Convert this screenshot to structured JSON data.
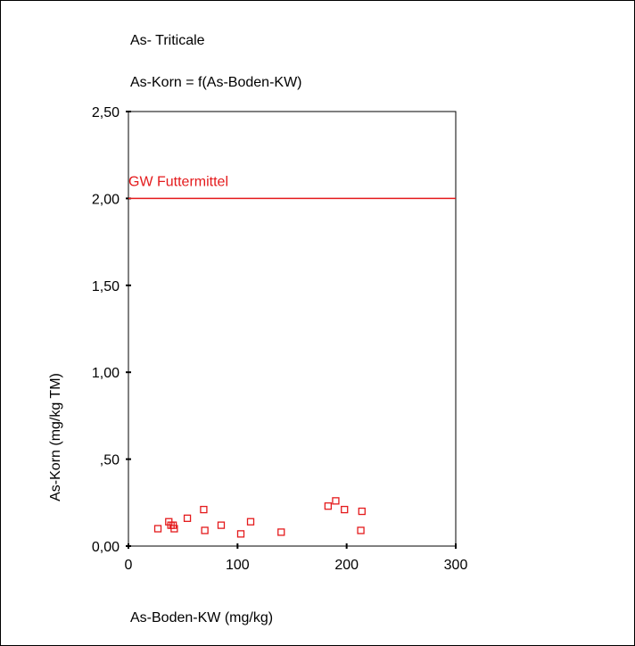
{
  "chart_data": {
    "type": "scatter",
    "title": "As- Triticale",
    "subtitle": "As-Korn = f(As-Boden-KW)",
    "xlabel": "As-Boden-KW (mg/kg)",
    "ylabel": "As-Korn (mg/kg TM)",
    "xlim": [
      0,
      300
    ],
    "ylim": [
      0,
      2.5
    ],
    "x_ticks": [
      0,
      100,
      200,
      300
    ],
    "x_tick_labels": [
      "0",
      "100",
      "200",
      "300"
    ],
    "y_ticks": [
      0,
      0.5,
      1.0,
      1.5,
      2.0,
      2.5
    ],
    "y_tick_labels": [
      "0,00",
      ",50",
      "1,00",
      "1,50",
      "2,00",
      "2,50"
    ],
    "grid": false,
    "reference_line": {
      "y": 2.0,
      "label": "GW Futtermittel",
      "color": "#e41a1c"
    },
    "marker": {
      "shape": "square",
      "filled": false,
      "color": "#e41a1c"
    },
    "points": [
      {
        "x": 27,
        "y": 0.1
      },
      {
        "x": 37,
        "y": 0.14
      },
      {
        "x": 39,
        "y": 0.12
      },
      {
        "x": 41,
        "y": 0.12
      },
      {
        "x": 42,
        "y": 0.1
      },
      {
        "x": 54,
        "y": 0.16
      },
      {
        "x": 69,
        "y": 0.21
      },
      {
        "x": 70,
        "y": 0.09
      },
      {
        "x": 85,
        "y": 0.12
      },
      {
        "x": 103,
        "y": 0.07
      },
      {
        "x": 112,
        "y": 0.14
      },
      {
        "x": 140,
        "y": 0.08
      },
      {
        "x": 183,
        "y": 0.23
      },
      {
        "x": 190,
        "y": 0.26
      },
      {
        "x": 198,
        "y": 0.21
      },
      {
        "x": 213,
        "y": 0.09
      },
      {
        "x": 214,
        "y": 0.2
      }
    ]
  }
}
